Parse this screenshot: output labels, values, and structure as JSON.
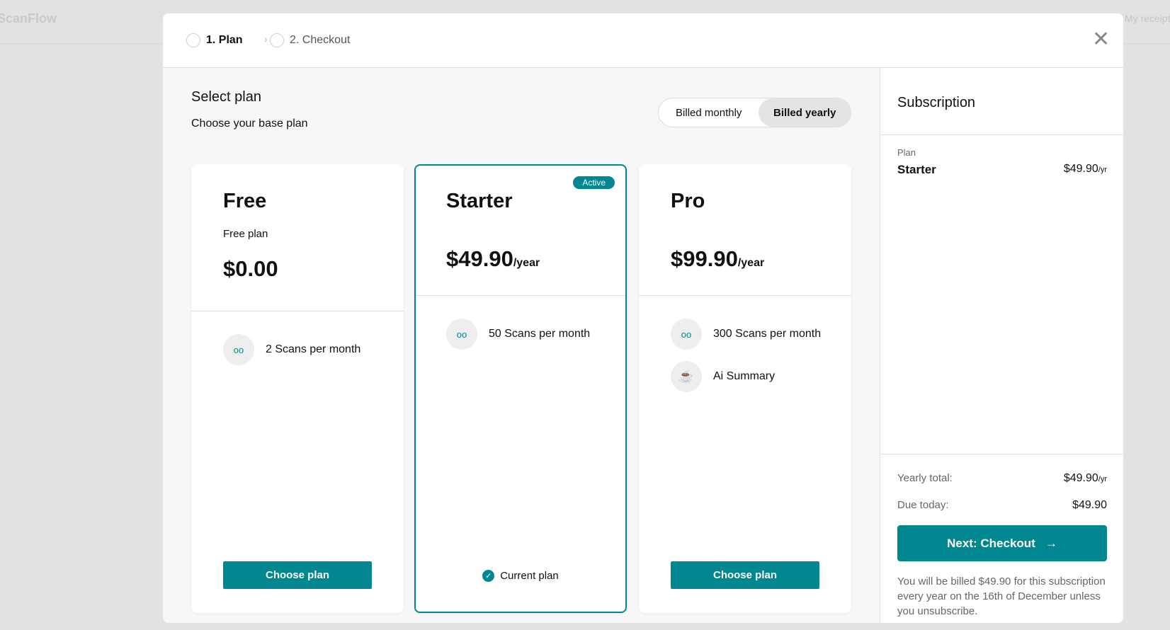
{
  "background": {
    "logo": "ScanFlow",
    "link": "My receipts"
  },
  "steps": [
    {
      "label": "1. Plan"
    },
    {
      "label": "2. Checkout"
    }
  ],
  "icons": {
    "close": "close-icon",
    "chevron": "chevron-right-icon",
    "scan": "glasses-icon",
    "ai": "cup-icon",
    "check": "check-circle-icon",
    "arrow": "arrow-right-icon"
  },
  "colors": {
    "accent": "#00878f"
  },
  "main": {
    "title": "Select plan",
    "subtitle": "Choose your base plan",
    "billing": {
      "monthly": "Billed monthly",
      "yearly": "Billed yearly",
      "selected": "yearly"
    },
    "plans": [
      {
        "name": "Free",
        "description": "Free plan",
        "price": "$0.00",
        "period": "",
        "features": [
          "2 Scans per month"
        ],
        "button": "Choose plan"
      },
      {
        "name": "Starter",
        "badge": "Active",
        "price": "$49.90",
        "period": "/year",
        "features": [
          "50 Scans per month"
        ],
        "current": "Current plan"
      },
      {
        "name": "Pro",
        "price": "$99.90",
        "period": "/year",
        "features": [
          "300 Scans per month",
          "Ai Summary"
        ],
        "button": "Choose plan"
      }
    ]
  },
  "summary": {
    "title": "Subscription",
    "plan_label": "Plan",
    "plan_name": "Starter",
    "plan_price": "$49.90",
    "plan_unit": "/yr",
    "yearly_label": "Yearly total:",
    "yearly_value": "$49.90",
    "yearly_unit": "/yr",
    "due_label": "Due today:",
    "due_value": "$49.90",
    "next_button": "Next: Checkout",
    "note": "You will be billed $49.90 for this subscription every year on the 16th of December unless you unsubscribe."
  }
}
